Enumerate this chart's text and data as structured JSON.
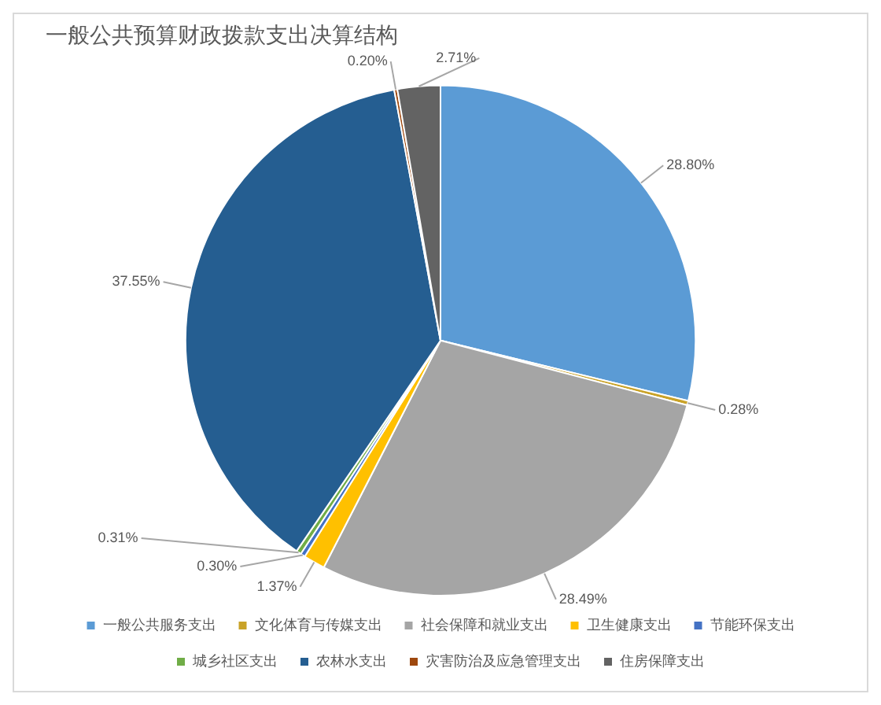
{
  "chart_data": {
    "type": "pie",
    "title": "一般公共预算财政拨款支出决算结构",
    "categories": [
      "一般公共服务支出",
      "文化体育与传媒支出",
      "社会保障和就业支出",
      "卫生健康支出",
      "节能环保支出",
      "城乡社区支出",
      "农林水支出",
      "灾害防治及应急管理支出",
      "住房保障支出"
    ],
    "values": [
      28.8,
      0.28,
      28.49,
      1.37,
      0.3,
      0.31,
      37.55,
      0.2,
      2.71
    ],
    "colors": [
      "#5b9bd5",
      "#c9a227",
      "#a5a5a5",
      "#ffc000",
      "#4472c4",
      "#70ad47",
      "#255e91",
      "#9e480e",
      "#636363"
    ],
    "value_labels": [
      "28.80%",
      "0.28%",
      "28.49%",
      "1.37%",
      "0.30%",
      "0.31%",
      "37.55%",
      "0.20%",
      "2.71%"
    ],
    "legend": "bottom"
  }
}
